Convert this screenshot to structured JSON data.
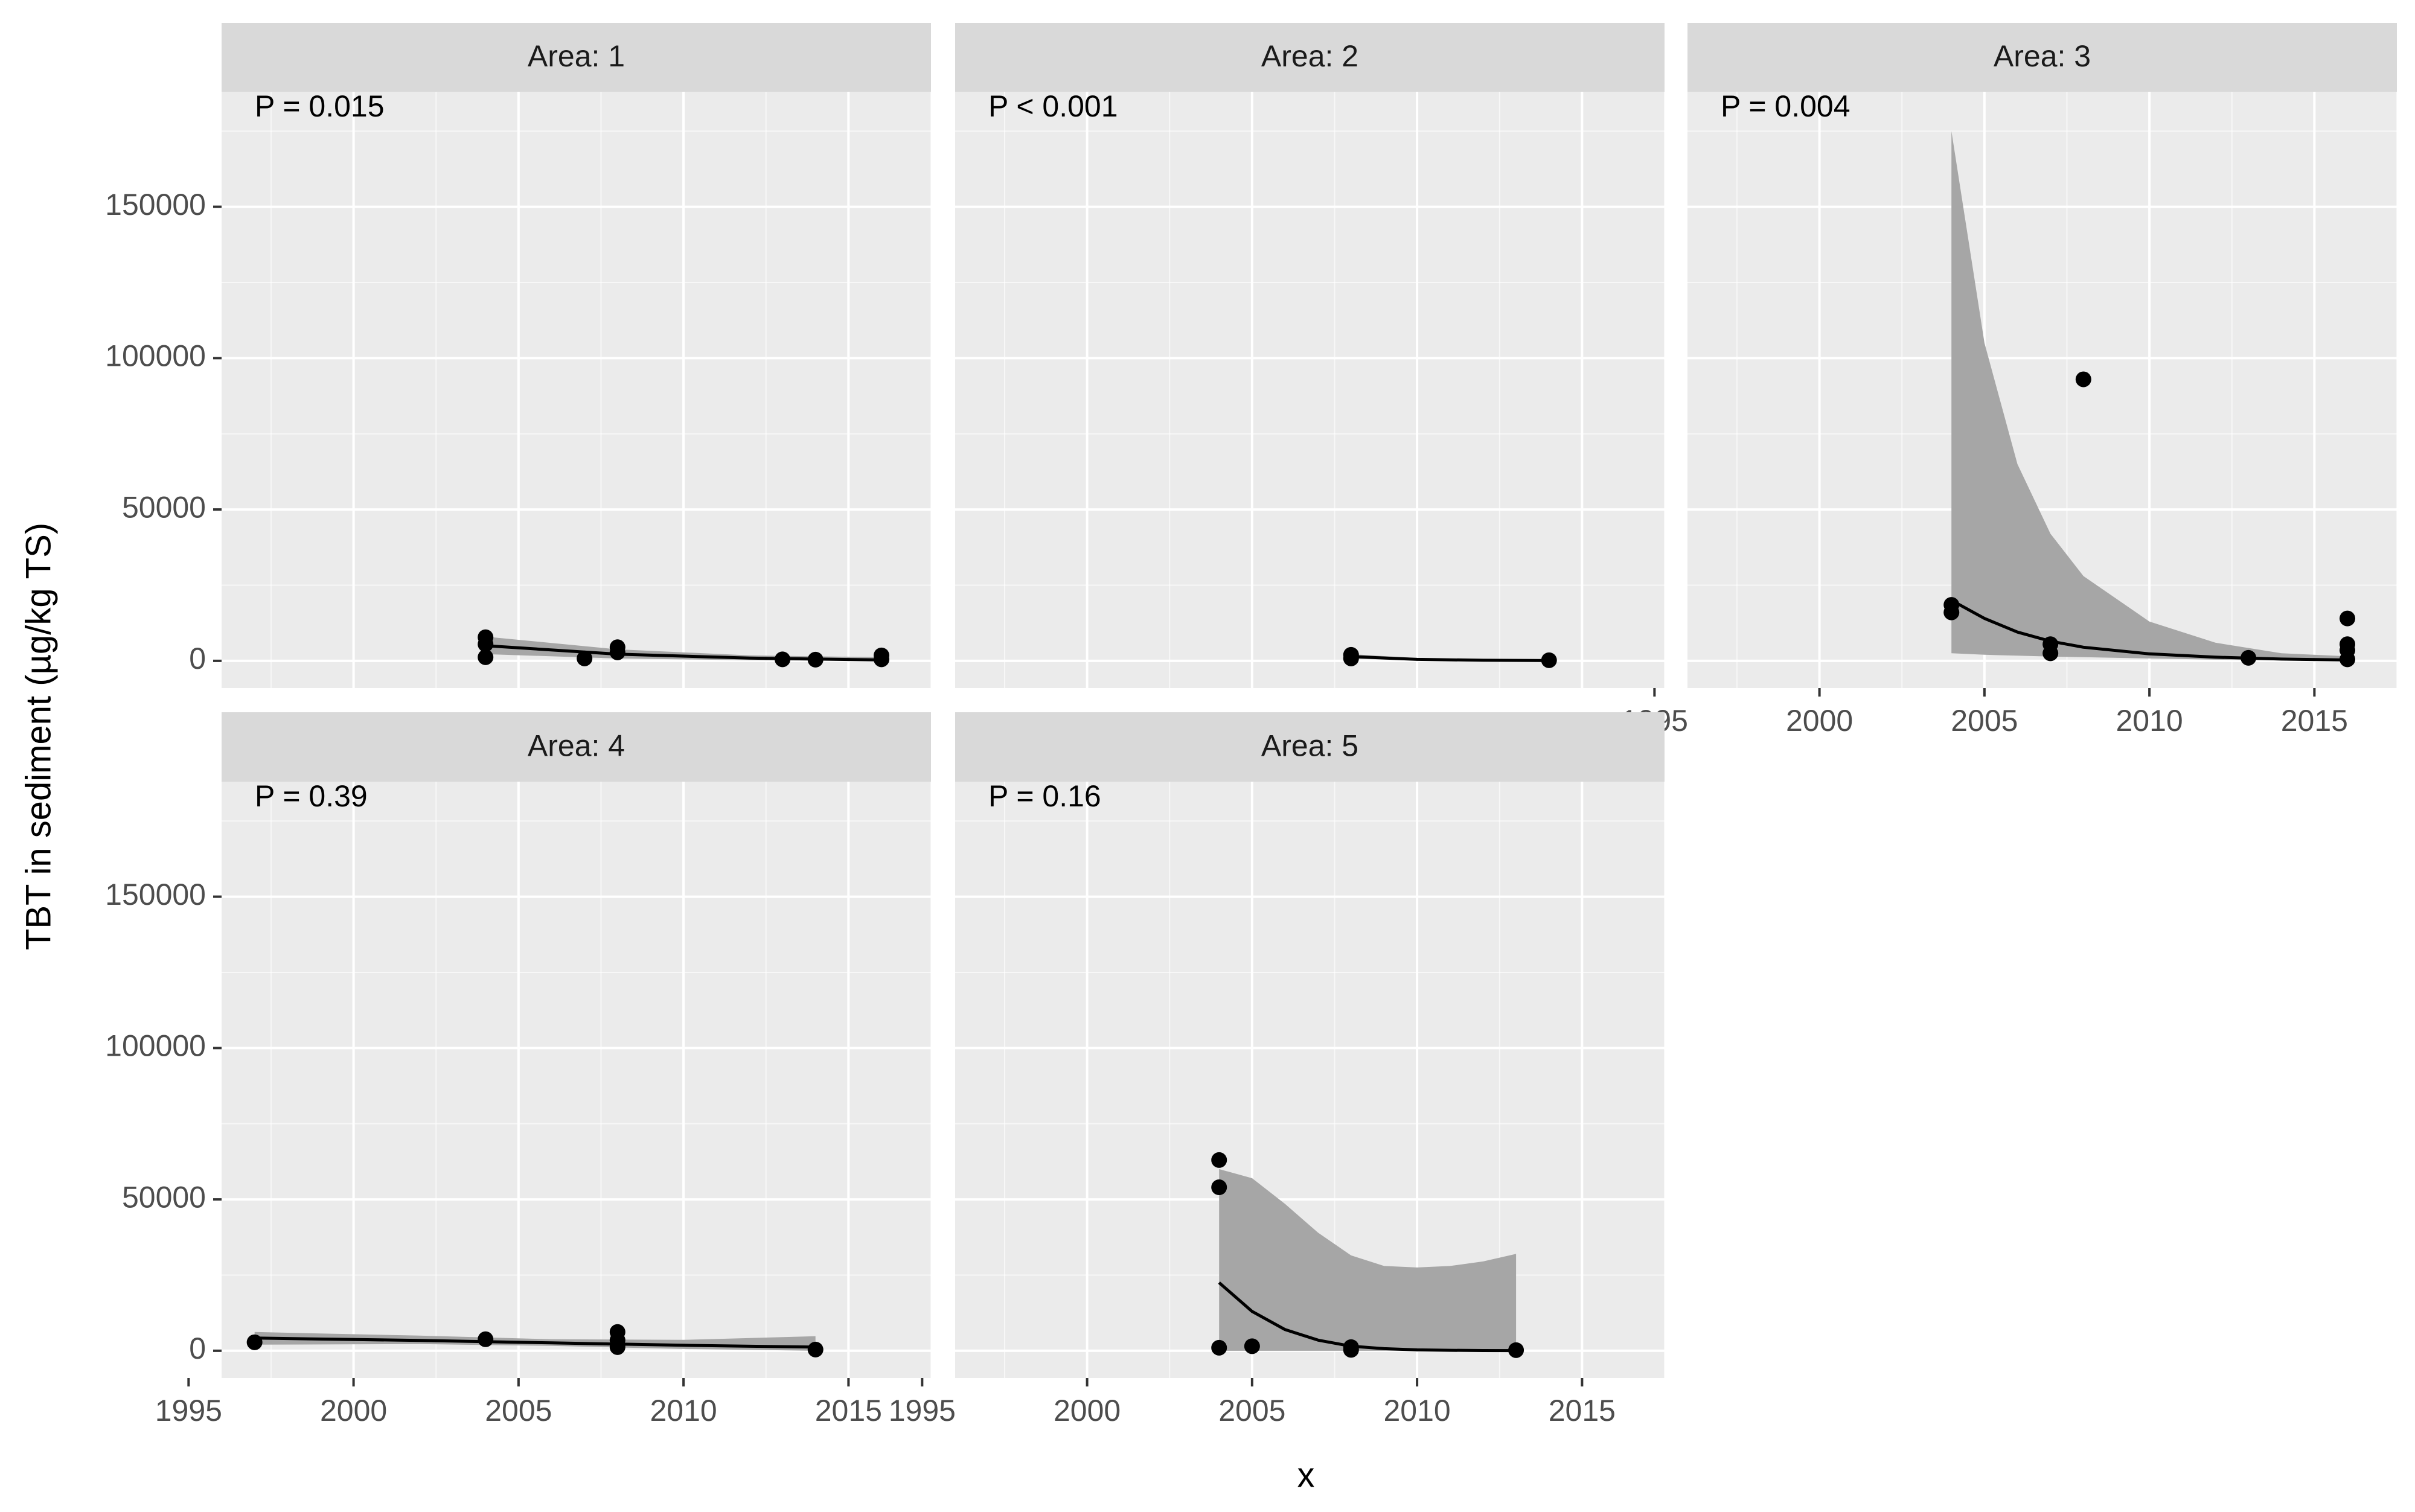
{
  "chart_data": {
    "type": "scatter",
    "layout": "facet-wrap",
    "xlabel": "x",
    "ylabel": "TBT in sediment (µg/kg TS)",
    "xlim": [
      1996,
      2017.5
    ],
    "ylim": [
      -9000,
      188000
    ],
    "x_ticks": [
      1995,
      2000,
      2005,
      2010,
      2015
    ],
    "x_tick_labels": [
      "1995",
      "2000",
      "2005",
      "2010",
      "2015"
    ],
    "y_ticks": [
      0,
      50000,
      100000,
      150000
    ],
    "y_tick_labels": [
      "0",
      "50000",
      "100000",
      "150000"
    ],
    "grid": true,
    "colors": {
      "panel_bg": "#ebebeb",
      "strip_bg": "#d9d9d9",
      "grid": "#ffffff",
      "point": "#000000",
      "ribbon": "#a6a6a6",
      "text": "#1a1a1a",
      "tick_text": "#4d4d4d"
    },
    "panels": [
      {
        "strip": "Area: 1",
        "annotation": "P = 0.015",
        "points": [
          {
            "x": 2004,
            "y": 7800
          },
          {
            "x": 2004,
            "y": 5500
          },
          {
            "x": 2004,
            "y": 1200
          },
          {
            "x": 2007,
            "y": 800
          },
          {
            "x": 2008,
            "y": 4500
          },
          {
            "x": 2008,
            "y": 2800
          },
          {
            "x": 2013,
            "y": 500
          },
          {
            "x": 2014,
            "y": 400
          },
          {
            "x": 2016,
            "y": 1800
          },
          {
            "x": 2016,
            "y": 500
          }
        ],
        "fit": {
          "x": [
            2004,
            2008,
            2012,
            2016
          ],
          "y": [
            5000,
            2200,
            900,
            300
          ]
        },
        "ribbon": {
          "x": [
            2004,
            2008,
            2012,
            2016
          ],
          "ymin": [
            2200,
            800,
            200,
            0
          ],
          "ymax": [
            8000,
            3800,
            1800,
            1200
          ]
        }
      },
      {
        "strip": "Area: 2",
        "annotation": "P < 0.001",
        "points": [
          {
            "x": 2008,
            "y": 2000
          },
          {
            "x": 2008,
            "y": 800
          },
          {
            "x": 2014,
            "y": 200
          }
        ],
        "fit": {
          "x": [
            2008,
            2010,
            2012,
            2014
          ],
          "y": [
            1400,
            500,
            200,
            100
          ]
        },
        "ribbon": {
          "x": [
            2008,
            2010,
            2012,
            2014
          ],
          "ymin": [
            700,
            200,
            50,
            0
          ],
          "ymax": [
            2200,
            900,
            500,
            300
          ]
        }
      },
      {
        "strip": "Area: 3",
        "annotation": "P = 0.004",
        "points": [
          {
            "x": 2004,
            "y": 18500
          },
          {
            "x": 2004,
            "y": 16000
          },
          {
            "x": 2007,
            "y": 5500
          },
          {
            "x": 2007,
            "y": 2500
          },
          {
            "x": 2008,
            "y": 93000
          },
          {
            "x": 2013,
            "y": 1000
          },
          {
            "x": 2016,
            "y": 14000
          },
          {
            "x": 2016,
            "y": 5500
          },
          {
            "x": 2016,
            "y": 3500
          },
          {
            "x": 2016,
            "y": 500
          }
        ],
        "fit": {
          "x": [
            2004,
            2005,
            2006,
            2007,
            2008,
            2010,
            2012,
            2014,
            2016
          ],
          "y": [
            20000,
            14000,
            9500,
            6500,
            4500,
            2300,
            1200,
            600,
            300
          ]
        },
        "ribbon": {
          "x": [
            2004,
            2005,
            2006,
            2007,
            2008,
            2010,
            2012,
            2014,
            2016
          ],
          "ymin": [
            2500,
            2000,
            1700,
            1400,
            1200,
            800,
            400,
            150,
            0
          ],
          "ymax": [
            175000,
            105000,
            65000,
            42000,
            28000,
            13000,
            6000,
            2500,
            1500
          ]
        }
      },
      {
        "strip": "Area: 4",
        "annotation": "P = 0.39",
        "points": [
          {
            "x": 1997,
            "y": 2800
          },
          {
            "x": 2004,
            "y": 3800
          },
          {
            "x": 2008,
            "y": 6200
          },
          {
            "x": 2008,
            "y": 3500
          },
          {
            "x": 2008,
            "y": 1200
          },
          {
            "x": 2014,
            "y": 400
          }
        ],
        "fit": {
          "x": [
            1997,
            2002,
            2006,
            2010,
            2014
          ],
          "y": [
            4200,
            3400,
            2600,
            1800,
            1200
          ]
        },
        "ribbon": {
          "x": [
            1997,
            2002,
            2006,
            2010,
            2014
          ],
          "ymin": [
            2000,
            2200,
            1600,
            600,
            0
          ],
          "ymax": [
            6200,
            5000,
            3800,
            3600,
            4800
          ]
        }
      },
      {
        "strip": "Area: 5",
        "annotation": "P = 0.16",
        "points": [
          {
            "x": 2004,
            "y": 63000
          },
          {
            "x": 2004,
            "y": 54000
          },
          {
            "x": 2004,
            "y": 1000
          },
          {
            "x": 2005,
            "y": 1500
          },
          {
            "x": 2008,
            "y": 1200
          },
          {
            "x": 2008,
            "y": 300
          },
          {
            "x": 2013,
            "y": 200
          }
        ],
        "fit": {
          "x": [
            2004,
            2005,
            2006,
            2007,
            2008,
            2009,
            2010,
            2011,
            2012,
            2013
          ],
          "y": [
            22500,
            13000,
            7000,
            3500,
            1500,
            700,
            300,
            150,
            80,
            50
          ]
        },
        "ribbon": {
          "x": [
            2004,
            2005,
            2006,
            2007,
            2008,
            2009,
            2010,
            2011,
            2012,
            2013
          ],
          "ymin": [
            0,
            0,
            0,
            0,
            0,
            0,
            0,
            0,
            0,
            0
          ],
          "ymax": [
            60000,
            57000,
            48500,
            39000,
            31500,
            28000,
            27500,
            28000,
            29500,
            32000
          ]
        }
      }
    ]
  }
}
